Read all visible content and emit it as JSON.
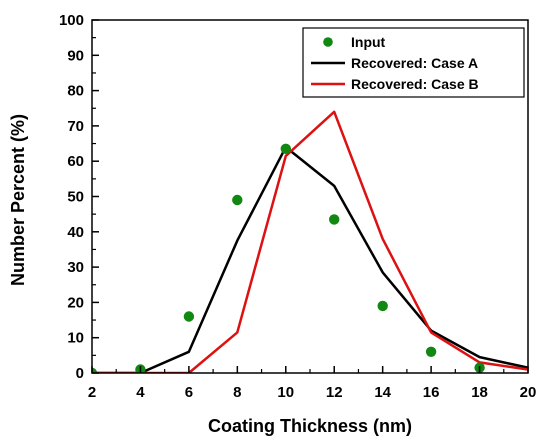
{
  "chart_data": {
    "type": "scatter",
    "title": "",
    "xlabel": "Coating Thickness (nm)",
    "ylabel": "Number Percent (%)",
    "xlim": [
      2,
      20
    ],
    "ylim": [
      0,
      100
    ],
    "xticks": [
      2,
      4,
      6,
      8,
      10,
      12,
      14,
      16,
      18,
      20
    ],
    "yticks": [
      0,
      10,
      20,
      30,
      40,
      50,
      60,
      70,
      80,
      90,
      100
    ],
    "grid": false,
    "legend_position": "top-right",
    "series": [
      {
        "name": "Input",
        "kind": "scatter",
        "color": "#118811",
        "x": [
          2,
          4,
          6,
          8,
          10,
          12,
          14,
          16,
          18
        ],
        "y": [
          0,
          1,
          16,
          49,
          63.5,
          43.5,
          19,
          6,
          1.5
        ]
      },
      {
        "name": "Recovered: Case A",
        "kind": "line",
        "color": "#000000",
        "x": [
          2,
          4,
          6,
          8,
          10,
          12,
          14,
          16,
          18,
          20
        ],
        "y": [
          0,
          0,
          6,
          37.5,
          64,
          53,
          28.5,
          12,
          4.5,
          1.5
        ]
      },
      {
        "name": "Recovered: Case B",
        "kind": "line",
        "color": "#dd1111",
        "x": [
          2,
          4,
          6,
          8,
          10,
          12,
          14,
          16,
          18,
          20
        ],
        "y": [
          0,
          0,
          0,
          11.5,
          61.5,
          74,
          38,
          11.5,
          3,
          1
        ]
      }
    ]
  }
}
